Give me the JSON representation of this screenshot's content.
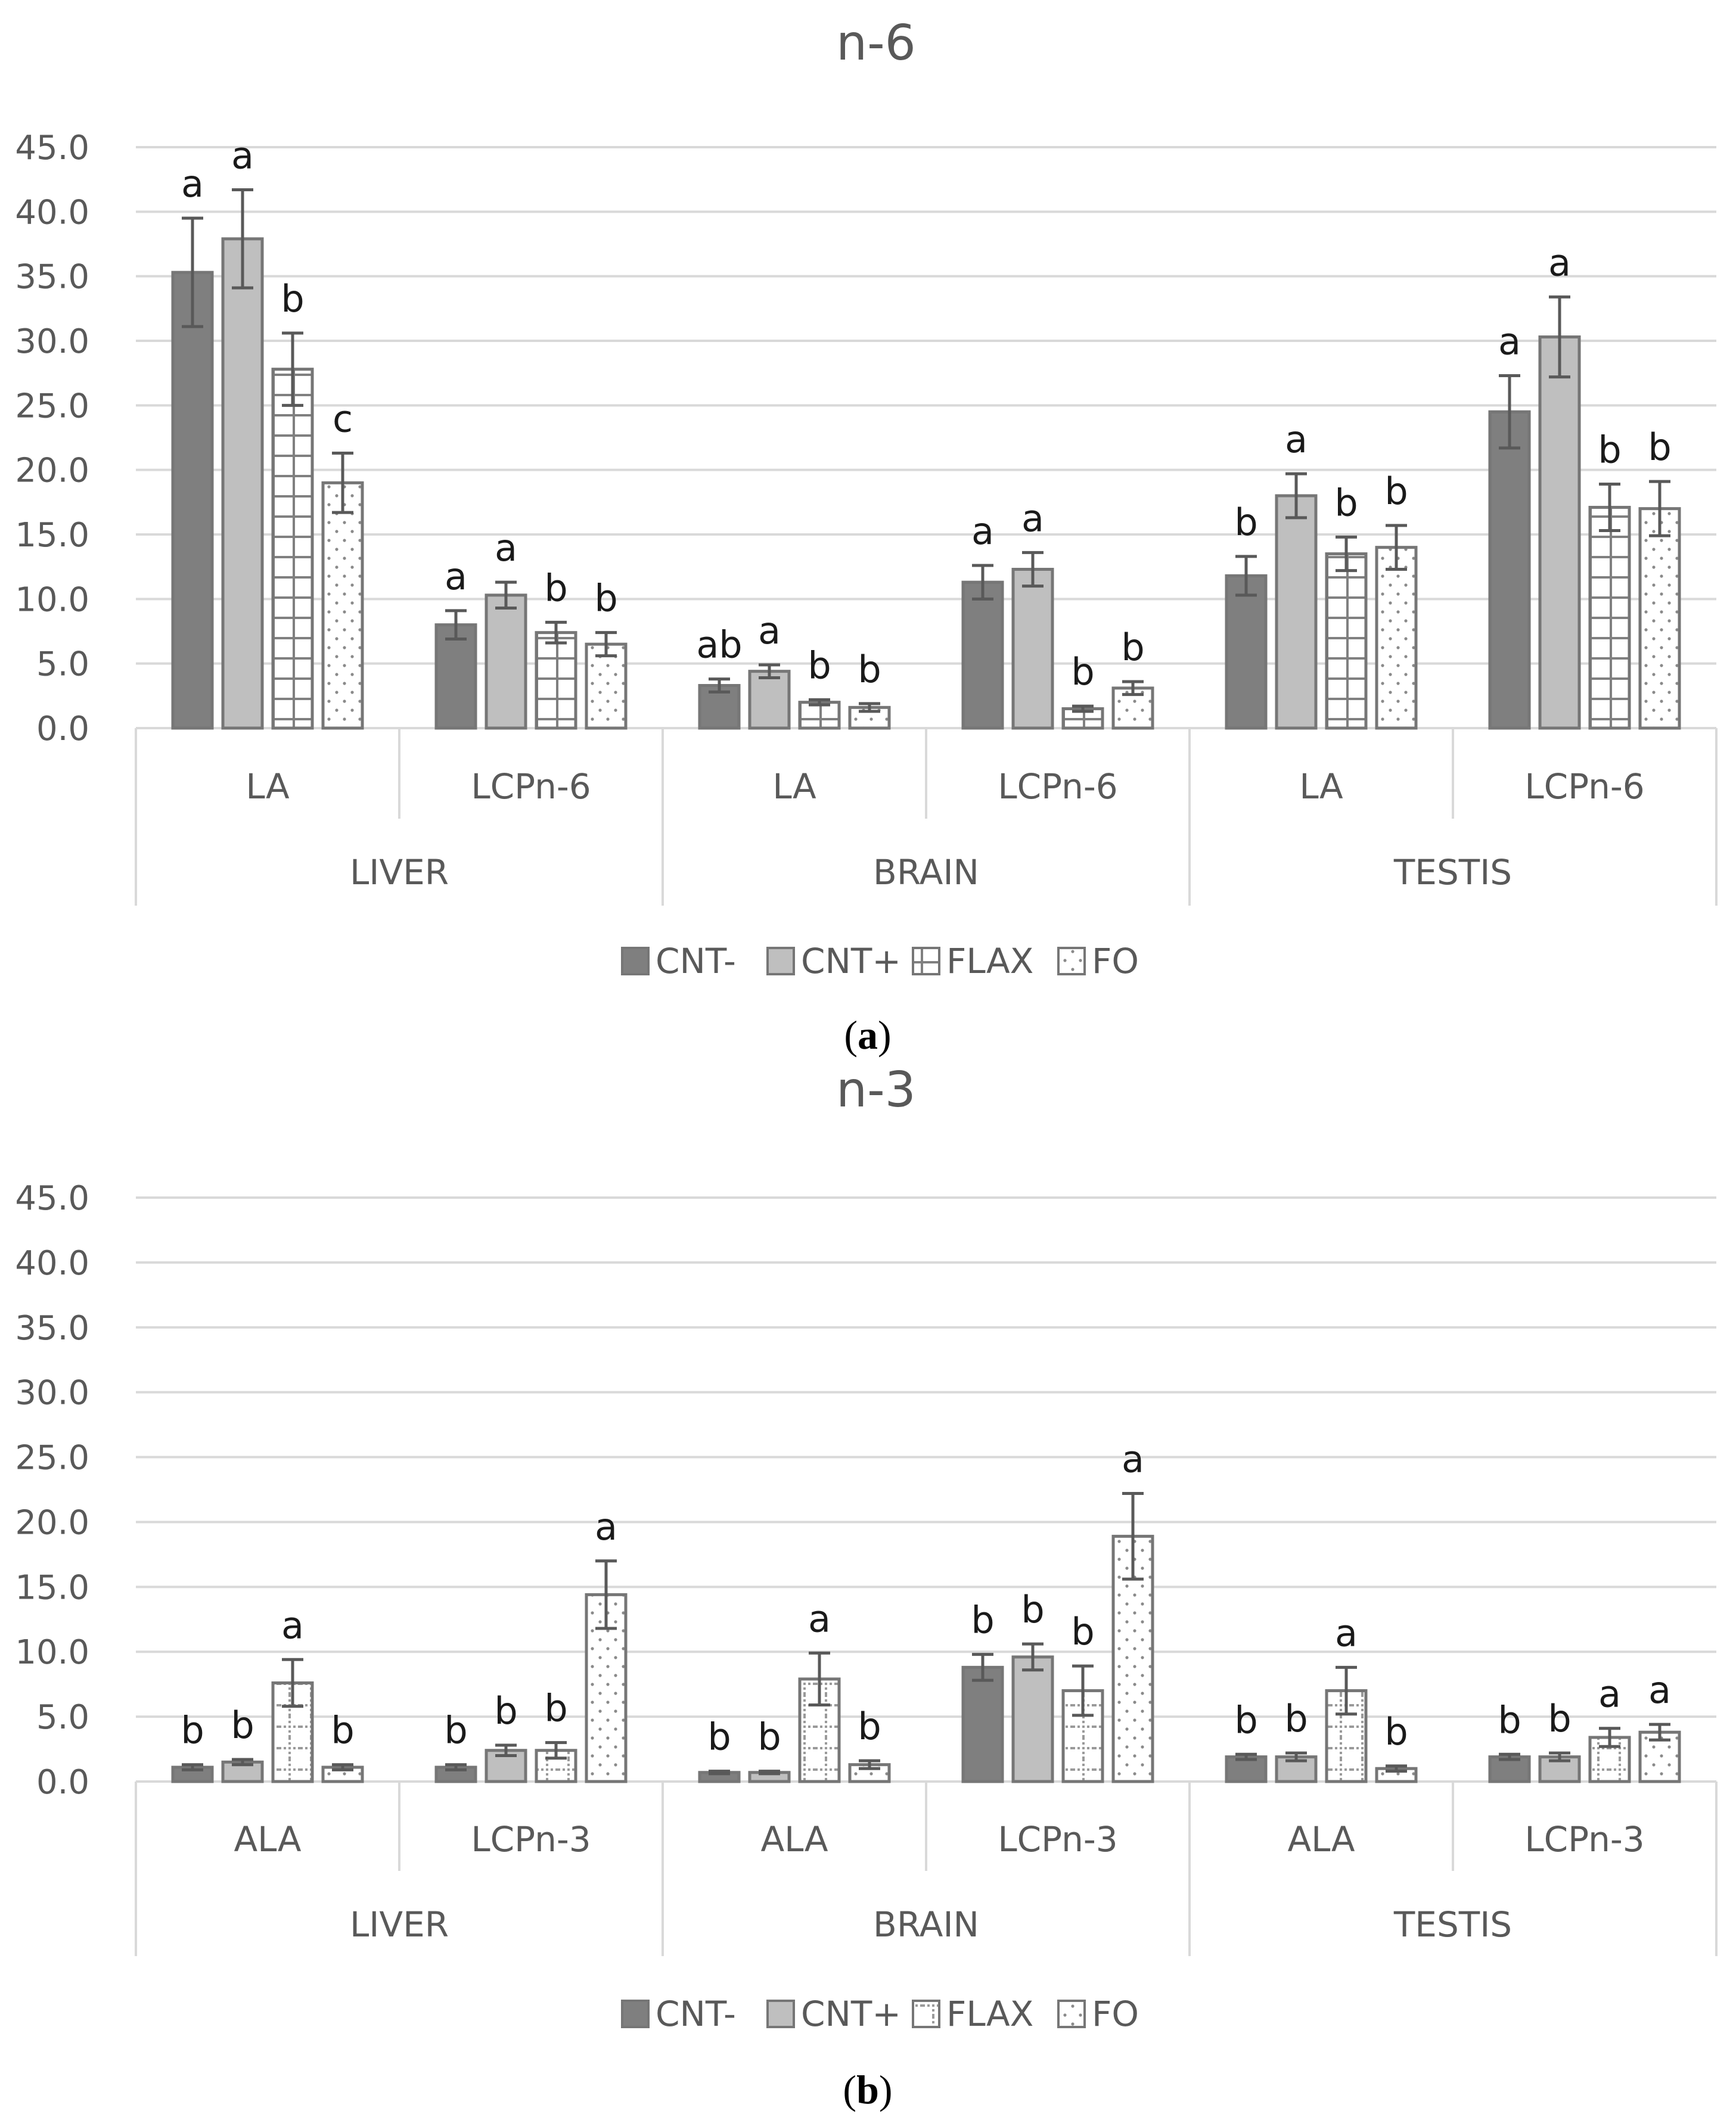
{
  "figure": {
    "caption_a": "a",
    "caption_b": "b"
  },
  "colors": {
    "CNT-": "#7f7f7f",
    "CNT+": "#bfbfbf",
    "FLAX": "#ffffff",
    "FO": "#ffffff",
    "stroke": "#767676",
    "grid": "#d9d9d9",
    "axis_text": "#595959"
  },
  "chart_data": [
    {
      "type": "bar",
      "panel": "a",
      "title": "n-6",
      "ylim": [
        0,
        45
      ],
      "yticks": [
        "0.0",
        "5.0",
        "10.0",
        "15.0",
        "20.0",
        "25.0",
        "30.0",
        "35.0",
        "40.0",
        "45.0"
      ],
      "grid": true,
      "legend_position": "bottom",
      "groups": [
        "LIVER",
        "BRAIN",
        "TESTIS"
      ],
      "categories": [
        "LA",
        "LCPn-6",
        "LA",
        "LCPn-6",
        "LA",
        "LCPn-6"
      ],
      "series": [
        {
          "name": "CNT-",
          "pattern": "solid-dark",
          "values": [
            35.3,
            8.0,
            3.3,
            11.3,
            11.8,
            24.5
          ],
          "errors": [
            4.2,
            1.1,
            0.5,
            1.3,
            1.5,
            2.8
          ],
          "letters": [
            "a",
            "a",
            "ab",
            "a",
            "b",
            "a"
          ]
        },
        {
          "name": "CNT+",
          "pattern": "solid-light",
          "values": [
            37.9,
            10.3,
            4.4,
            12.3,
            18.0,
            30.3
          ],
          "errors": [
            3.8,
            1.0,
            0.5,
            1.3,
            1.7,
            3.1
          ],
          "letters": [
            "a",
            "a",
            "a",
            "a",
            "a",
            "a"
          ]
        },
        {
          "name": "FLAX",
          "pattern": "grid",
          "values": [
            27.8,
            7.4,
            2.0,
            1.5,
            13.5,
            17.1
          ],
          "errors": [
            2.8,
            0.8,
            0.2,
            0.2,
            1.3,
            1.8
          ],
          "letters": [
            "b",
            "b",
            "b",
            "b",
            "b",
            "b"
          ]
        },
        {
          "name": "FO",
          "pattern": "dots",
          "values": [
            19.0,
            6.5,
            1.6,
            3.1,
            14.0,
            17.0
          ],
          "errors": [
            2.3,
            0.9,
            0.3,
            0.5,
            1.7,
            2.1
          ],
          "letters": [
            "c",
            "b",
            "b",
            "b",
            "b",
            "b"
          ]
        }
      ]
    },
    {
      "type": "bar",
      "panel": "b",
      "title": "n-3",
      "ylim": [
        0,
        45
      ],
      "yticks": [
        "0.0",
        "5.0",
        "10.0",
        "15.0",
        "20.0",
        "25.0",
        "30.0",
        "35.0",
        "40.0",
        "45.0"
      ],
      "grid": true,
      "legend_position": "bottom",
      "groups": [
        "LIVER",
        "BRAIN",
        "TESTIS"
      ],
      "categories": [
        "ALA",
        "LCPn-3",
        "ALA",
        "LCPn-3",
        "ALA",
        "LCPn-3"
      ],
      "series": [
        {
          "name": "CNT-",
          "pattern": "solid-dark",
          "values": [
            1.1,
            1.1,
            0.7,
            8.8,
            1.9,
            1.9
          ],
          "errors": [
            0.2,
            0.2,
            0.1,
            1.0,
            0.2,
            0.2
          ],
          "letters": [
            "b",
            "b",
            "b",
            "b",
            "b",
            "b"
          ]
        },
        {
          "name": "CNT+",
          "pattern": "solid-light",
          "values": [
            1.5,
            2.4,
            0.7,
            9.6,
            1.9,
            1.9
          ],
          "errors": [
            0.2,
            0.4,
            0.1,
            1.0,
            0.3,
            0.3
          ],
          "letters": [
            "b",
            "b",
            "b",
            "b",
            "b",
            "b"
          ]
        },
        {
          "name": "FLAX",
          "pattern": "dotgrid",
          "values": [
            7.6,
            2.4,
            7.9,
            7.0,
            7.0,
            3.4
          ],
          "errors": [
            1.8,
            0.6,
            2.0,
            1.9,
            1.8,
            0.7
          ],
          "letters": [
            "a",
            "b",
            "a",
            "b",
            "a",
            "a"
          ]
        },
        {
          "name": "FO",
          "pattern": "dots",
          "values": [
            1.1,
            14.4,
            1.3,
            18.9,
            1.0,
            3.8
          ],
          "errors": [
            0.2,
            2.6,
            0.3,
            3.3,
            0.2,
            0.6
          ],
          "letters": [
            "b",
            "a",
            "b",
            "a",
            "b",
            "a"
          ]
        }
      ]
    }
  ]
}
